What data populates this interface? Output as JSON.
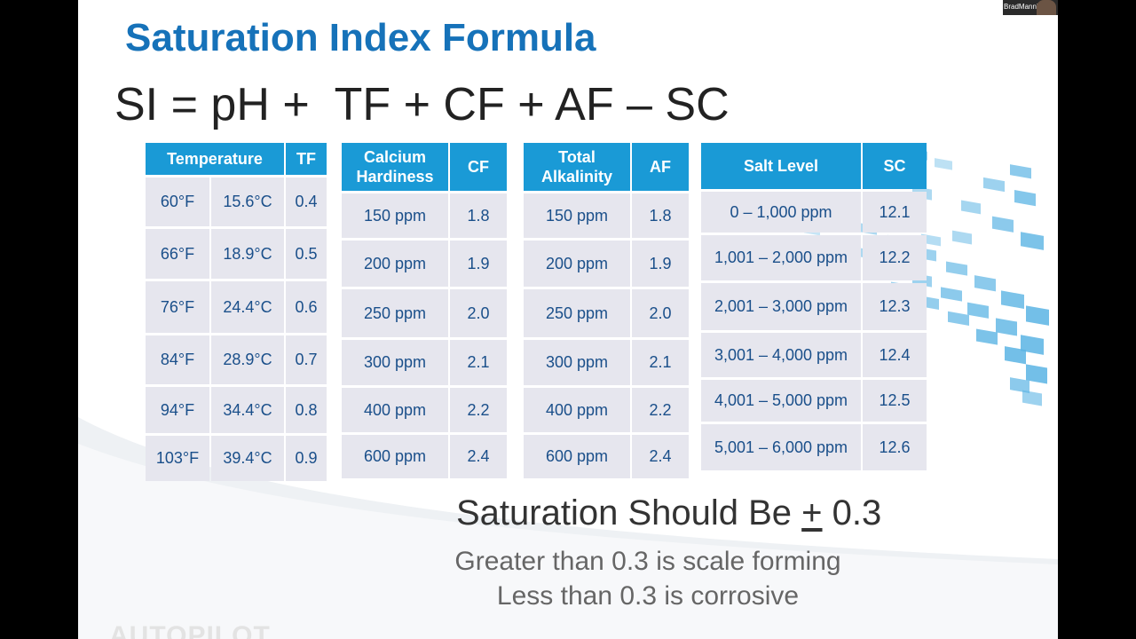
{
  "slide": {
    "title": "Saturation Index Formula",
    "formula": "SI = pH +  TF + CF + AF – SC"
  },
  "tables": {
    "temperature": {
      "headers": [
        "Temperature",
        "TF"
      ],
      "rows": [
        [
          "60°F",
          "15.6°C",
          "0.4"
        ],
        [
          "66°F",
          "18.9°C",
          "0.5"
        ],
        [
          "76°F",
          "24.4°C",
          "0.6"
        ],
        [
          "84°F",
          "28.9°C",
          "0.7"
        ],
        [
          "94°F",
          "34.4°C",
          "0.8"
        ],
        [
          "103°F",
          "39.4°C",
          "0.9"
        ]
      ]
    },
    "calcium": {
      "headers": [
        "Calcium\nHardiness",
        "CF"
      ],
      "rows": [
        [
          "150 ppm",
          "1.8"
        ],
        [
          "200 ppm",
          "1.9"
        ],
        [
          "250 ppm",
          "2.0"
        ],
        [
          "300 ppm",
          "2.1"
        ],
        [
          "400 ppm",
          "2.2"
        ],
        [
          "600 ppm",
          "2.4"
        ]
      ]
    },
    "alkalinity": {
      "headers": [
        "Total\nAlkalinity",
        "AF"
      ],
      "rows": [
        [
          "150 ppm",
          "1.8"
        ],
        [
          "200 ppm",
          "1.9"
        ],
        [
          "250 ppm",
          "2.0"
        ],
        [
          "300 ppm",
          "2.1"
        ],
        [
          "400 ppm",
          "2.2"
        ],
        [
          "600 ppm",
          "2.4"
        ]
      ]
    },
    "salt": {
      "headers": [
        "Salt Level",
        "SC"
      ],
      "rows": [
        [
          "0 – 1,000 ppm",
          "12.1"
        ],
        [
          "1,001 – 2,000 ppm",
          "12.2"
        ],
        [
          "2,001 – 3,000 ppm",
          "12.3"
        ],
        [
          "3,001 – 4,000 ppm",
          "12.4"
        ],
        [
          "4,001 – 5,000 ppm",
          "12.5"
        ],
        [
          "5,001 – 6,000 ppm",
          "12.6"
        ]
      ]
    }
  },
  "notes": {
    "main_prefix": "Saturation Should Be ",
    "main_symbol": "+",
    "main_suffix": " 0.3",
    "line1": "Greater than 0.3 is scale forming",
    "line2": "Less than 0.3 is corrosive"
  },
  "footer": {
    "logo": "AUTOPILOT"
  },
  "video": {
    "participant_name": "BradManning"
  },
  "colors": {
    "title": "#1672b9",
    "table_header": "#1a9ad6",
    "table_cell": "#e6e6ee",
    "cell_text": "#1a4f8a"
  }
}
